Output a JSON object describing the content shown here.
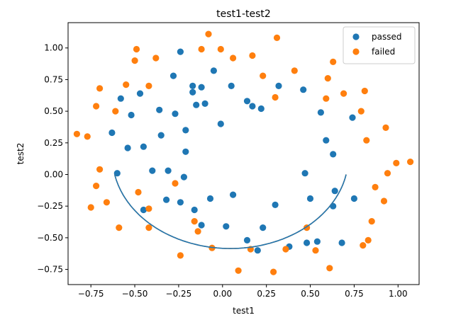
{
  "chart_data": {
    "type": "scatter",
    "title": "test1-test2",
    "xlabel": "test1",
    "ylabel": "test2",
    "xlim": [
      -0.88,
      1.12
    ],
    "ylim": [
      -0.87,
      1.2
    ],
    "xticks": [
      -0.75,
      -0.5,
      -0.25,
      0.0,
      0.25,
      0.5,
      0.75,
      1.0
    ],
    "xtick_labels": [
      "−0.75",
      "−0.50",
      "−0.25",
      "0.00",
      "0.25",
      "0.50",
      "0.75",
      "1.00"
    ],
    "yticks": [
      -0.75,
      -0.5,
      -0.25,
      0.0,
      0.25,
      0.5,
      0.75,
      1.0
    ],
    "ytick_labels": [
      "−0.75",
      "−0.50",
      "−0.25",
      "0.00",
      "0.25",
      "0.50",
      "0.75",
      "1.00"
    ],
    "grid": false,
    "legend_position": "top-right",
    "series": [
      {
        "name": "passed",
        "color": "#1f77b4",
        "points": [
          [
            -0.24,
            0.97
          ],
          [
            -0.28,
            0.78
          ],
          [
            -0.17,
            0.7
          ],
          [
            -0.17,
            0.65
          ],
          [
            -0.12,
            0.69
          ],
          [
            -0.05,
            0.82
          ],
          [
            0.05,
            0.7
          ],
          [
            0.32,
            0.7
          ],
          [
            0.46,
            0.67
          ],
          [
            -0.58,
            0.6
          ],
          [
            -0.47,
            0.64
          ],
          [
            -0.1,
            0.56
          ],
          [
            -0.15,
            0.55
          ],
          [
            0.14,
            0.58
          ],
          [
            0.17,
            0.54
          ],
          [
            0.22,
            0.52
          ],
          [
            -0.36,
            0.51
          ],
          [
            -0.27,
            0.48
          ],
          [
            -0.52,
            0.47
          ],
          [
            0.56,
            0.49
          ],
          [
            0.74,
            0.45
          ],
          [
            -0.01,
            0.4
          ],
          [
            -0.21,
            0.35
          ],
          [
            -0.63,
            0.33
          ],
          [
            -0.35,
            0.31
          ],
          [
            0.59,
            0.27
          ],
          [
            -0.54,
            0.21
          ],
          [
            -0.45,
            0.22
          ],
          [
            -0.21,
            0.18
          ],
          [
            0.63,
            0.16
          ],
          [
            -0.4,
            0.03
          ],
          [
            -0.31,
            0.03
          ],
          [
            -0.6,
            0.01
          ],
          [
            -0.22,
            -0.02
          ],
          [
            0.47,
            0.01
          ],
          [
            0.64,
            -0.13
          ],
          [
            0.75,
            -0.19
          ],
          [
            -0.07,
            -0.19
          ],
          [
            0.06,
            -0.16
          ],
          [
            0.5,
            -0.19
          ],
          [
            -0.32,
            -0.2
          ],
          [
            -0.24,
            -0.22
          ],
          [
            0.3,
            -0.24
          ],
          [
            0.63,
            -0.25
          ],
          [
            -0.45,
            -0.28
          ],
          [
            -0.16,
            -0.28
          ],
          [
            -0.12,
            -0.4
          ],
          [
            0.02,
            -0.41
          ],
          [
            0.23,
            -0.42
          ],
          [
            0.14,
            -0.52
          ],
          [
            0.48,
            -0.54
          ],
          [
            0.54,
            -0.53
          ],
          [
            0.68,
            -0.54
          ],
          [
            0.38,
            -0.57
          ],
          [
            0.2,
            -0.6
          ]
        ]
      },
      {
        "name": "failed",
        "color": "#ff7f0e",
        "points": [
          [
            -0.08,
            1.11
          ],
          [
            0.31,
            1.08
          ],
          [
            -0.12,
            0.99
          ],
          [
            -0.01,
            0.99
          ],
          [
            -0.49,
            0.99
          ],
          [
            -0.38,
            0.92
          ],
          [
            0.06,
            0.92
          ],
          [
            0.17,
            0.94
          ],
          [
            -0.5,
            0.9
          ],
          [
            0.63,
            0.89
          ],
          [
            0.41,
            0.82
          ],
          [
            0.23,
            0.78
          ],
          [
            -0.42,
            0.7
          ],
          [
            -0.55,
            0.71
          ],
          [
            -0.7,
            0.68
          ],
          [
            0.6,
            0.76
          ],
          [
            0.81,
            0.66
          ],
          [
            0.69,
            0.64
          ],
          [
            0.3,
            0.61
          ],
          [
            0.59,
            0.6
          ],
          [
            -0.72,
            0.54
          ],
          [
            -0.61,
            0.5
          ],
          [
            0.79,
            0.5
          ],
          [
            -0.83,
            0.32
          ],
          [
            -0.77,
            0.3
          ],
          [
            0.93,
            0.37
          ],
          [
            0.82,
            0.27
          ],
          [
            -0.7,
            0.04
          ],
          [
            0.94,
            0.01
          ],
          [
            0.99,
            0.09
          ],
          [
            1.07,
            0.1
          ],
          [
            -0.72,
            -0.09
          ],
          [
            -0.27,
            -0.07
          ],
          [
            -0.48,
            -0.14
          ],
          [
            0.87,
            -0.1
          ],
          [
            -0.66,
            -0.22
          ],
          [
            -0.75,
            -0.26
          ],
          [
            -0.42,
            -0.27
          ],
          [
            0.92,
            -0.21
          ],
          [
            -0.59,
            -0.42
          ],
          [
            -0.42,
            -0.42
          ],
          [
            -0.16,
            -0.37
          ],
          [
            -0.14,
            -0.45
          ],
          [
            0.48,
            -0.42
          ],
          [
            0.85,
            -0.37
          ],
          [
            0.83,
            -0.52
          ],
          [
            0.8,
            -0.56
          ],
          [
            -0.06,
            -0.58
          ],
          [
            0.16,
            -0.59
          ],
          [
            0.36,
            -0.59
          ],
          [
            0.53,
            -0.6
          ],
          [
            -0.24,
            -0.64
          ],
          [
            0.61,
            -0.74
          ],
          [
            0.09,
            -0.76
          ],
          [
            0.29,
            -0.77
          ]
        ]
      }
    ],
    "decision_boundary": {
      "shape": "ellipse",
      "center": [
        0.045,
        0.14
      ],
      "semi_axis_x": 0.672,
      "semi_axis_y": 0.725,
      "color_lower": "#1f77b4",
      "color_upper": "#ff7f0e"
    }
  }
}
